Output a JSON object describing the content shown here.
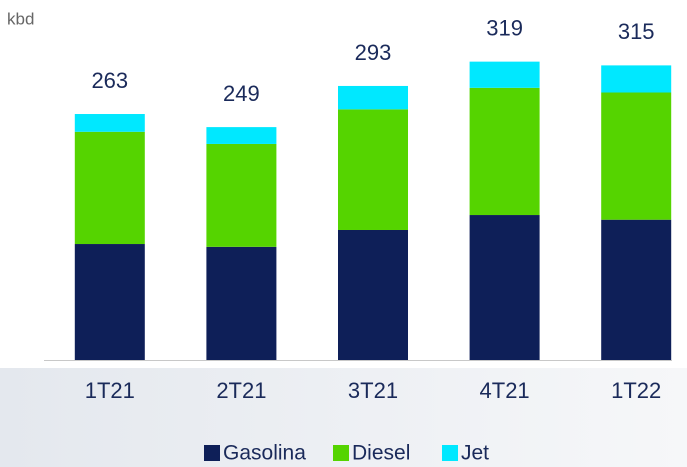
{
  "chart_data": {
    "type": "stacked_bar",
    "unit_label": "kbd",
    "categories": [
      "1T21",
      "2T21",
      "3T21",
      "4T21",
      "1T22"
    ],
    "series": [
      {
        "name": "Gasolina",
        "color": "#0e1f58",
        "values": [
          124,
          121,
          139,
          155,
          150
        ]
      },
      {
        "name": "Diesel",
        "color": "#55d400",
        "values": [
          120,
          110,
          129,
          136,
          136
        ]
      },
      {
        "name": "Jet",
        "color": "#00e8ff",
        "values": [
          19,
          18,
          25,
          28,
          29
        ]
      }
    ],
    "totals": [
      263,
      249,
      293,
      319,
      315
    ],
    "ylim": [
      0,
      340
    ],
    "legend": "bottom"
  }
}
